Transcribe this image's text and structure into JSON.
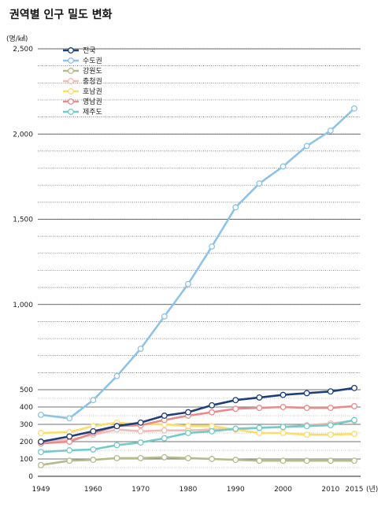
{
  "title": "권역별 인구 밀도 변화",
  "chart_data": {
    "type": "line",
    "title": "권역별 인구 밀도 변화",
    "ylabel": "(명/㎢)",
    "xlabel": "",
    "x_suffix": "(년)",
    "x": [
      1949,
      1955,
      1960,
      1965,
      1970,
      1975,
      1980,
      1985,
      1990,
      1995,
      2000,
      2005,
      2010,
      2015
    ],
    "x_ticks": [
      1949,
      1960,
      1970,
      1980,
      1990,
      2000,
      2010,
      2015
    ],
    "y_ticks": [
      0,
      100,
      200,
      300,
      400,
      500,
      1000,
      1500,
      2000,
      2500
    ],
    "y_tick_labels": [
      "0",
      "100",
      "200",
      "300",
      "400",
      "500",
      "1,000",
      "1,500",
      "2,000",
      "2,500"
    ],
    "ylim": [
      0,
      2500
    ],
    "y_scale": "piecewise (0–500 expanded)",
    "grid": "dotted horizontal",
    "legend_position": "top-left",
    "series": [
      {
        "name": "전국",
        "color": "#1f3f7a",
        "values": [
          200,
          230,
          260,
          290,
          310,
          350,
          370,
          410,
          440,
          455,
          470,
          480,
          490,
          510
        ]
      },
      {
        "name": "수도권",
        "color": "#8ec3e6",
        "values": [
          355,
          335,
          440,
          580,
          740,
          930,
          1120,
          1340,
          1570,
          1710,
          1810,
          1930,
          2020,
          2150
        ]
      },
      {
        "name": "강원도",
        "color": "#b5bb8a",
        "values": [
          65,
          90,
          95,
          105,
          105,
          110,
          105,
          100,
          95,
          90,
          90,
          90,
          90,
          90
        ]
      },
      {
        "name": "충청권",
        "color": "#efbdb4",
        "values": [
          200,
          210,
          240,
          270,
          260,
          265,
          265,
          270,
          270,
          280,
          285,
          295,
          305,
          320
        ]
      },
      {
        "name": "호남권",
        "color": "#fddd6a",
        "values": [
          250,
          255,
          290,
          310,
          300,
          300,
          290,
          290,
          270,
          250,
          250,
          240,
          240,
          245
        ]
      },
      {
        "name": "영남권",
        "color": "#e98a8c",
        "values": [
          190,
          200,
          250,
          290,
          295,
          325,
          350,
          370,
          390,
          395,
          400,
          395,
          395,
          405
        ]
      },
      {
        "name": "제주도",
        "color": "#72cbc8",
        "values": [
          140,
          150,
          155,
          180,
          195,
          220,
          250,
          260,
          275,
          280,
          285,
          290,
          295,
          325
        ]
      }
    ]
  }
}
